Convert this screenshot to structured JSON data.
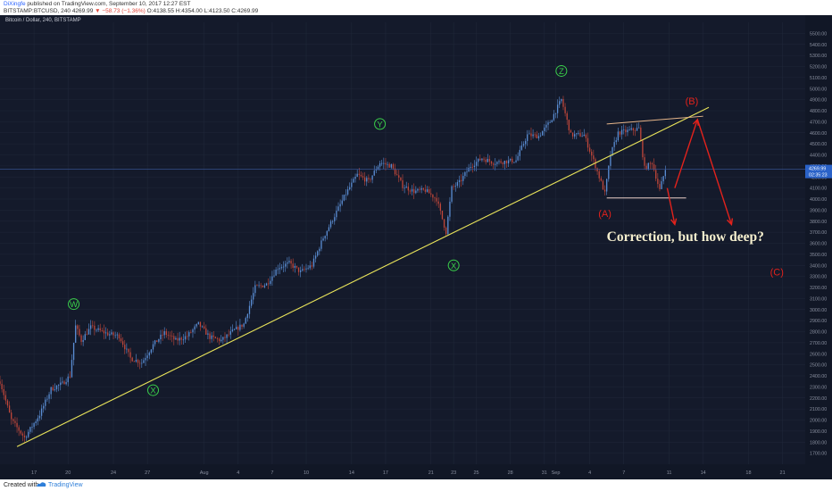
{
  "header": {
    "author": "DiXingfe",
    "published_text": " published on TradingView.com, September 10, 2017 12:27 EST",
    "symbol_line_prefix": "BITSTAMP:BTCUSD, 240  4269.99 ",
    "symbol_line_change": "▼ −58.73 (−1.36%)",
    "symbol_line_ohlc": " O:4138.55 H:4354.00 L:4123.50 C:4269.99"
  },
  "footer": {
    "created_label": "Created with",
    "brand": "TradingView"
  },
  "colors": {
    "background": "#141a2b",
    "grid": "#1f2739",
    "up_candle": "#5b8fd6",
    "down_candle": "#c1473a",
    "trendline": "#e8e35a",
    "triangle_line": "#e7b68a",
    "projection": "#e3221c",
    "wave_green": "#3ad04a",
    "price_line": "#3b5ba0",
    "annotation_text": "#f5efce"
  },
  "chart_data": {
    "type": "candlestick",
    "title": "Bitcoin / Dollar, 240, BITSTAMP",
    "y_axis": {
      "ylim": [
        1600,
        5600
      ],
      "ticks": [
        1700,
        1800,
        1900,
        2000,
        2100,
        2200,
        2300,
        2400,
        2500,
        2600,
        2700,
        2800,
        2900,
        3000,
        3100,
        3200,
        3300,
        3400,
        3500,
        3600,
        3700,
        3800,
        3900,
        4000,
        4100,
        4200,
        4300,
        4400,
        4500,
        4600,
        4700,
        4800,
        4900,
        5000,
        5100,
        5200,
        5300,
        5400,
        5500
      ]
    },
    "x_axis": {
      "range": [
        "2017-07-14",
        "2017-09-23"
      ],
      "tick_labels": [
        {
          "label": "17",
          "date": "2017-07-17"
        },
        {
          "label": "20",
          "date": "2017-07-20"
        },
        {
          "label": "24",
          "date": "2017-07-24"
        },
        {
          "label": "27",
          "date": "2017-07-27"
        },
        {
          "label": "Aug",
          "date": "2017-08-01"
        },
        {
          "label": "4",
          "date": "2017-08-04"
        },
        {
          "label": "7",
          "date": "2017-08-07"
        },
        {
          "label": "10",
          "date": "2017-08-10"
        },
        {
          "label": "14",
          "date": "2017-08-14"
        },
        {
          "label": "17",
          "date": "2017-08-17"
        },
        {
          "label": "21",
          "date": "2017-08-21"
        },
        {
          "label": "23",
          "date": "2017-08-23"
        },
        {
          "label": "25",
          "date": "2017-08-25"
        },
        {
          "label": "28",
          "date": "2017-08-28"
        },
        {
          "label": "31",
          "date": "2017-08-31"
        },
        {
          "label": "Sep",
          "date": "2017-09-01"
        },
        {
          "label": "4",
          "date": "2017-09-04"
        },
        {
          "label": "7",
          "date": "2017-09-07"
        },
        {
          "label": "11",
          "date": "2017-09-11"
        },
        {
          "label": "14",
          "date": "2017-09-14"
        },
        {
          "label": "18",
          "date": "2017-09-18"
        },
        {
          "label": "21",
          "date": "2017-09-21"
        }
      ]
    },
    "price_anchors": [
      {
        "date": "2017-07-14T00:00",
        "close": 2350
      },
      {
        "date": "2017-07-15T00:00",
        "close": 2000
      },
      {
        "date": "2017-07-16T04:00",
        "close": 1840
      },
      {
        "date": "2017-07-17T12:00",
        "close": 2050
      },
      {
        "date": "2017-07-18T12:00",
        "close": 2280
      },
      {
        "date": "2017-07-19T12:00",
        "close": 2330
      },
      {
        "date": "2017-07-20T04:00",
        "close": 2400
      },
      {
        "date": "2017-07-20T16:00",
        "close": 2850
      },
      {
        "date": "2017-07-21T04:00",
        "close": 2720
      },
      {
        "date": "2017-07-22T00:00",
        "close": 2840
      },
      {
        "date": "2017-07-23T12:00",
        "close": 2780
      },
      {
        "date": "2017-07-24T12:00",
        "close": 2760
      },
      {
        "date": "2017-07-25T12:00",
        "close": 2560
      },
      {
        "date": "2017-07-26T12:00",
        "close": 2520
      },
      {
        "date": "2017-07-27T12:00",
        "close": 2680
      },
      {
        "date": "2017-07-28T12:00",
        "close": 2790
      },
      {
        "date": "2017-07-29T12:00",
        "close": 2720
      },
      {
        "date": "2017-07-30T12:00",
        "close": 2760
      },
      {
        "date": "2017-07-31T12:00",
        "close": 2870
      },
      {
        "date": "2017-08-01T12:00",
        "close": 2750
      },
      {
        "date": "2017-08-02T12:00",
        "close": 2720
      },
      {
        "date": "2017-08-03T12:00",
        "close": 2800
      },
      {
        "date": "2017-08-04T12:00",
        "close": 2870
      },
      {
        "date": "2017-08-05T12:00",
        "close": 3200
      },
      {
        "date": "2017-08-06T12:00",
        "close": 3230
      },
      {
        "date": "2017-08-07T12:00",
        "close": 3380
      },
      {
        "date": "2017-08-08T12:00",
        "close": 3420
      },
      {
        "date": "2017-08-09T12:00",
        "close": 3340
      },
      {
        "date": "2017-08-10T12:00",
        "close": 3400
      },
      {
        "date": "2017-08-11T12:00",
        "close": 3650
      },
      {
        "date": "2017-08-12T12:00",
        "close": 3850
      },
      {
        "date": "2017-08-13T12:00",
        "close": 4050
      },
      {
        "date": "2017-08-14T12:00",
        "close": 4220
      },
      {
        "date": "2017-08-15T12:00",
        "close": 4160
      },
      {
        "date": "2017-08-16T12:00",
        "close": 4330
      },
      {
        "date": "2017-08-17T12:00",
        "close": 4300
      },
      {
        "date": "2017-08-18T12:00",
        "close": 4120
      },
      {
        "date": "2017-08-19T12:00",
        "close": 4070
      },
      {
        "date": "2017-08-20T12:00",
        "close": 4080
      },
      {
        "date": "2017-08-21T12:00",
        "close": 4000
      },
      {
        "date": "2017-08-22T08:00",
        "close": 3700
      },
      {
        "date": "2017-08-22T20:00",
        "close": 4100
      },
      {
        "date": "2017-08-23T12:00",
        "close": 4150
      },
      {
        "date": "2017-08-24T12:00",
        "close": 4300
      },
      {
        "date": "2017-08-25T12:00",
        "close": 4370
      },
      {
        "date": "2017-08-26T12:00",
        "close": 4330
      },
      {
        "date": "2017-08-27T12:00",
        "close": 4340
      },
      {
        "date": "2017-08-28T12:00",
        "close": 4350
      },
      {
        "date": "2017-08-29T12:00",
        "close": 4580
      },
      {
        "date": "2017-08-30T12:00",
        "close": 4570
      },
      {
        "date": "2017-08-31T12:00",
        "close": 4700
      },
      {
        "date": "2017-09-01T12:00",
        "close": 4900
      },
      {
        "date": "2017-09-02T08:00",
        "close": 4580
      },
      {
        "date": "2017-09-03T12:00",
        "close": 4580
      },
      {
        "date": "2017-09-04T12:00",
        "close": 4300
      },
      {
        "date": "2017-09-05T08:00",
        "close": 4050
      },
      {
        "date": "2017-09-05T20:00",
        "close": 4400
      },
      {
        "date": "2017-09-06T12:00",
        "close": 4600
      },
      {
        "date": "2017-09-07T12:00",
        "close": 4620
      },
      {
        "date": "2017-09-08T08:00",
        "close": 4640
      },
      {
        "date": "2017-09-08T20:00",
        "close": 4280
      },
      {
        "date": "2017-09-09T12:00",
        "close": 4330
      },
      {
        "date": "2017-09-10T04:00",
        "close": 4080
      },
      {
        "date": "2017-09-10T16:00",
        "close": 4270
      }
    ],
    "last_price": {
      "value": 4269.99,
      "label": "4269.99",
      "countdown": "02:35:23"
    },
    "wave_labels": [
      {
        "text": "W",
        "date": "2017-07-20T12:00",
        "price": 3050,
        "color": "green"
      },
      {
        "text": "X",
        "date": "2017-07-27T12:00",
        "price": 2270,
        "color": "green"
      },
      {
        "text": "Y",
        "date": "2017-08-16T12:00",
        "price": 4680,
        "color": "green"
      },
      {
        "text": "X",
        "date": "2017-08-23T00:00",
        "price": 3400,
        "color": "green"
      },
      {
        "text": "Z",
        "date": "2017-09-01T12:00",
        "price": 5160,
        "color": "green"
      },
      {
        "text": "(A)",
        "date": "2017-09-05T08:00",
        "price": 3870,
        "color": "red"
      },
      {
        "text": "(B)",
        "date": "2017-09-13T00:00",
        "price": 4890,
        "color": "red"
      },
      {
        "text": "(C)",
        "date": "2017-09-20T12:00",
        "price": 3340,
        "color": "red"
      }
    ],
    "trendline": {
      "from": {
        "date": "2017-07-15T12:00",
        "price": 1760
      },
      "to": {
        "date": "2017-09-14T12:00",
        "price": 4830
      }
    },
    "triangle": {
      "upper": {
        "from": {
          "date": "2017-09-05T12:00",
          "price": 4680
        },
        "to": {
          "date": "2017-09-14T00:00",
          "price": 4750
        }
      },
      "lower": {
        "from": {
          "date": "2017-09-05T12:00",
          "price": 4010
        },
        "to": {
          "date": "2017-09-12T12:00",
          "price": 4010
        }
      }
    },
    "projections": [
      {
        "from": {
          "date": "2017-09-11T12:00",
          "price": 4100
        },
        "to": {
          "date": "2017-09-13T12:00",
          "price": 4720
        }
      },
      {
        "from": {
          "date": "2017-09-13T12:00",
          "price": 4720
        },
        "to": {
          "date": "2017-09-16T12:00",
          "price": 3770
        }
      },
      {
        "from": {
          "date": "2017-09-10T20:00",
          "price": 4100
        },
        "to": {
          "date": "2017-09-11T12:00",
          "price": 3770
        }
      }
    ],
    "annotation": {
      "text": "Correction, but how deep?",
      "date": "2017-09-05T12:00",
      "price": 3620
    }
  }
}
